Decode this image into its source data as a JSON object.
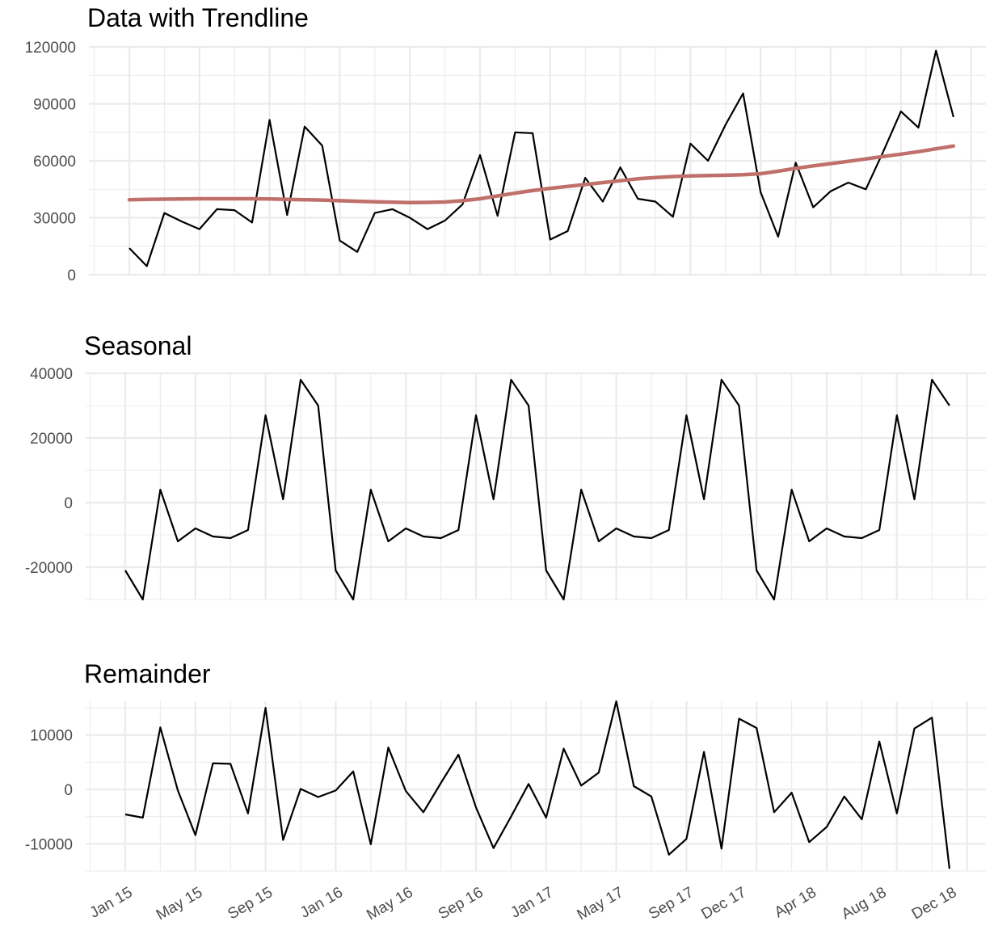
{
  "chart_data": [
    {
      "type": "line",
      "title": "Data with Trendline",
      "ylim": [
        0,
        120000
      ],
      "yticks": [
        0,
        30000,
        60000,
        90000,
        120000
      ],
      "x": [
        "2015-01",
        "2015-02",
        "2015-03",
        "2015-04",
        "2015-05",
        "2015-06",
        "2015-07",
        "2015-08",
        "2015-09",
        "2015-10",
        "2015-11",
        "2015-12",
        "2016-01",
        "2016-02",
        "2016-03",
        "2016-04",
        "2016-05",
        "2016-06",
        "2016-07",
        "2016-08",
        "2016-09",
        "2016-10",
        "2016-11",
        "2016-12",
        "2017-01",
        "2017-02",
        "2017-03",
        "2017-04",
        "2017-05",
        "2017-06",
        "2017-07",
        "2017-08",
        "2017-09",
        "2017-10",
        "2017-11",
        "2017-12",
        "2018-01",
        "2018-02",
        "2018-03",
        "2018-04",
        "2018-05",
        "2018-06",
        "2018-07",
        "2018-08",
        "2018-09",
        "2018-10",
        "2018-11",
        "2018-12"
      ],
      "series": [
        {
          "color": "#000000",
          "values": [
            14000,
            4500,
            32500,
            28000,
            24000,
            34500,
            34000,
            27500,
            81500,
            31500,
            78000,
            68000,
            18000,
            12000,
            32500,
            34500,
            30000,
            24000,
            28500,
            37000,
            63000,
            31000,
            75000,
            74500,
            18500,
            23000,
            51000,
            38500,
            56500,
            40000,
            38500,
            30500,
            69000,
            60000,
            79000,
            95500,
            43500,
            20000,
            59000,
            35500,
            44000,
            48500,
            45000,
            65000,
            86000,
            77500,
            118000,
            83000
          ]
        },
        {
          "color": "#c0706b",
          "style": "trend",
          "values": [
            39500,
            39700,
            39800,
            39900,
            40000,
            40000,
            40000,
            40000,
            39900,
            39700,
            39500,
            39300,
            39000,
            38700,
            38400,
            38200,
            38000,
            38100,
            38300,
            39000,
            40000,
            41500,
            43000,
            44300,
            45500,
            46500,
            47500,
            48500,
            49500,
            50500,
            51200,
            51700,
            52000,
            52200,
            52400,
            52700,
            53200,
            54500,
            56000,
            57300,
            58500,
            59700,
            61000,
            62300,
            63500,
            64800,
            66300,
            67800
          ]
        }
      ]
    },
    {
      "type": "line",
      "title": "Seasonal",
      "ylim": [
        -30000,
        40000
      ],
      "yticks": [
        -20000,
        0,
        20000,
        40000
      ],
      "x": [
        "2015-01",
        "2015-02",
        "2015-03",
        "2015-04",
        "2015-05",
        "2015-06",
        "2015-07",
        "2015-08",
        "2015-09",
        "2015-10",
        "2015-11",
        "2015-12",
        "2016-01",
        "2016-02",
        "2016-03",
        "2016-04",
        "2016-05",
        "2016-06",
        "2016-07",
        "2016-08",
        "2016-09",
        "2016-10",
        "2016-11",
        "2016-12",
        "2017-01",
        "2017-02",
        "2017-03",
        "2017-04",
        "2017-05",
        "2017-06",
        "2017-07",
        "2017-08",
        "2017-09",
        "2017-10",
        "2017-11",
        "2017-12",
        "2018-01",
        "2018-02",
        "2018-03",
        "2018-04",
        "2018-05",
        "2018-06",
        "2018-07",
        "2018-08",
        "2018-09",
        "2018-10",
        "2018-11",
        "2018-12"
      ],
      "series": [
        {
          "color": "#000000",
          "values": [
            -21000,
            -30000,
            4000,
            -12000,
            -8000,
            -10500,
            -11000,
            -8500,
            27000,
            1000,
            38000,
            30000,
            -21000,
            -30000,
            4000,
            -12000,
            -8000,
            -10500,
            -11000,
            -8500,
            27000,
            1000,
            38000,
            30000,
            -21000,
            -30000,
            4000,
            -12000,
            -8000,
            -10500,
            -11000,
            -8500,
            27000,
            1000,
            38000,
            30000,
            -21000,
            -30000,
            4000,
            -12000,
            -8000,
            -10500,
            -11000,
            -8500,
            27000,
            1000,
            38000,
            30000
          ]
        }
      ]
    },
    {
      "type": "line",
      "title": "Remainder",
      "ylim": [
        -15000,
        16000
      ],
      "yticks": [
        -10000,
        0,
        10000
      ],
      "x": [
        "2015-01",
        "2015-02",
        "2015-03",
        "2015-04",
        "2015-05",
        "2015-06",
        "2015-07",
        "2015-08",
        "2015-09",
        "2015-10",
        "2015-11",
        "2015-12",
        "2016-01",
        "2016-02",
        "2016-03",
        "2016-04",
        "2016-05",
        "2016-06",
        "2016-07",
        "2016-08",
        "2016-09",
        "2016-10",
        "2016-11",
        "2016-12",
        "2017-01",
        "2017-02",
        "2017-03",
        "2017-04",
        "2017-05",
        "2017-06",
        "2017-07",
        "2017-08",
        "2017-09",
        "2017-10",
        "2017-11",
        "2017-12",
        "2018-01",
        "2018-02",
        "2018-03",
        "2018-04",
        "2018-05",
        "2018-06",
        "2018-07",
        "2018-08",
        "2018-09",
        "2018-10",
        "2018-11",
        "2018-12"
      ],
      "xticks": [
        "2015-01",
        "2015-05",
        "2015-09",
        "2016-01",
        "2016-05",
        "2016-09",
        "2017-01",
        "2017-05",
        "2017-09",
        "2017-12",
        "2018-04",
        "2018-08",
        "2018-12"
      ],
      "xtick_labels": [
        "Jan 15",
        "May 15",
        "Sep 15",
        "Jan 16",
        "May 16",
        "Sep 16",
        "Jan 17",
        "May 17",
        "Sep 17",
        "Dec 17",
        "Apr 18",
        "Aug 18",
        "Dec 18"
      ],
      "series": [
        {
          "color": "#000000",
          "values": [
            -4600,
            -5200,
            11400,
            -200,
            -8400,
            4800,
            4700,
            -4400,
            15000,
            -9300,
            100,
            -1400,
            -200,
            3300,
            -10100,
            7700,
            -300,
            -4200,
            1200,
            6400,
            -3300,
            -10800,
            -5000,
            1000,
            -5200,
            7500,
            700,
            3100,
            16200,
            600,
            -1300,
            -12000,
            -9100,
            6900,
            -10900,
            13000,
            11300,
            -4200,
            -600,
            -9700,
            -6900,
            -1300,
            -5500,
            8800,
            -4400,
            11200,
            13200,
            -14600
          ]
        }
      ]
    }
  ]
}
